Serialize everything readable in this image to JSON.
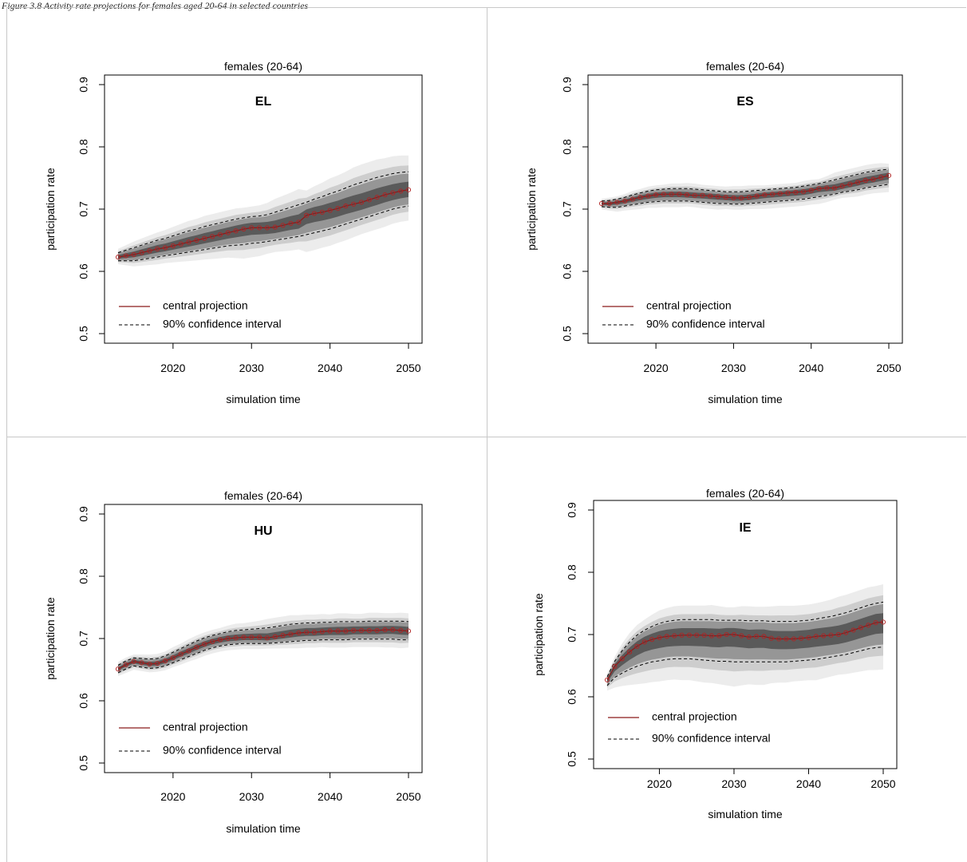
{
  "figure_heading": "Figure 3.8 Activity rate projections for females aged 20-64 in selected countries",
  "legend": {
    "central_label": "central projection",
    "ci_label": "90% confidence interval"
  },
  "colors": {
    "central_line": "#8b1a1a",
    "marker": "#b22222",
    "ci_line": "#000000",
    "band_dark": "#5a5a5a",
    "band_mid": "#969696",
    "band_light": "#cdcdcd",
    "band_faint": "#ececec"
  },
  "chart_data": [
    {
      "type": "line",
      "title": "females (20-64)",
      "country": "EL",
      "xlabel": "simulation time",
      "ylabel": "participation rate",
      "xlim": [
        2013,
        2050
      ],
      "ylim": [
        0.5,
        0.9
      ],
      "xticks": [
        "2020",
        "2030",
        "2040",
        "2050"
      ],
      "yticks": [
        "0.5",
        "0.6",
        "0.7",
        "0.8",
        "0.9"
      ],
      "legend_position": "bottom-left",
      "x": [
        2013,
        2014,
        2015,
        2016,
        2017,
        2018,
        2019,
        2020,
        2021,
        2022,
        2023,
        2024,
        2025,
        2026,
        2027,
        2028,
        2029,
        2030,
        2031,
        2032,
        2033,
        2034,
        2035,
        2036,
        2037,
        2038,
        2039,
        2040,
        2041,
        2042,
        2043,
        2044,
        2045,
        2046,
        2047,
        2048,
        2049,
        2050
      ],
      "series": [
        {
          "name": "central projection",
          "values": [
            0.623,
            0.625,
            0.627,
            0.63,
            0.633,
            0.636,
            0.638,
            0.641,
            0.644,
            0.647,
            0.65,
            0.653,
            0.656,
            0.659,
            0.662,
            0.665,
            0.668,
            0.67,
            0.67,
            0.67,
            0.671,
            0.674,
            0.677,
            0.679,
            0.69,
            0.693,
            0.695,
            0.698,
            0.701,
            0.705,
            0.708,
            0.711,
            0.715,
            0.719,
            0.723,
            0.726,
            0.729,
            0.731
          ]
        },
        {
          "name": "90% confidence interval",
          "values": [
            0.63,
            0.634,
            0.638,
            0.642,
            0.646,
            0.65,
            0.653,
            0.657,
            0.661,
            0.665,
            0.668,
            0.672,
            0.675,
            0.678,
            0.681,
            0.684,
            0.686,
            0.688,
            0.689,
            0.691,
            0.695,
            0.699,
            0.703,
            0.707,
            0.711,
            0.716,
            0.72,
            0.725,
            0.729,
            0.734,
            0.739,
            0.743,
            0.747,
            0.751,
            0.754,
            0.757,
            0.759,
            0.76
          ]
        },
        {
          "name": "90% confidence interval",
          "values": [
            0.617,
            0.617,
            0.617,
            0.619,
            0.621,
            0.623,
            0.625,
            0.627,
            0.629,
            0.631,
            0.633,
            0.635,
            0.637,
            0.639,
            0.641,
            0.642,
            0.643,
            0.645,
            0.646,
            0.648,
            0.65,
            0.652,
            0.654,
            0.656,
            0.659,
            0.662,
            0.665,
            0.668,
            0.672,
            0.676,
            0.68,
            0.684,
            0.688,
            0.692,
            0.696,
            0.7,
            0.703,
            0.705
          ]
        }
      ]
    },
    {
      "type": "line",
      "title": "females (20-64)",
      "country": "ES",
      "xlabel": "simulation time",
      "ylabel": "participation rate",
      "xlim": [
        2013,
        2050
      ],
      "ylim": [
        0.5,
        0.9
      ],
      "xticks": [
        "2020",
        "2030",
        "2040",
        "2050"
      ],
      "yticks": [
        "0.5",
        "0.6",
        "0.7",
        "0.8",
        "0.9"
      ],
      "legend_position": "bottom-left",
      "x": [
        2013,
        2014,
        2015,
        2016,
        2017,
        2018,
        2019,
        2020,
        2021,
        2022,
        2023,
        2024,
        2025,
        2026,
        2027,
        2028,
        2029,
        2030,
        2031,
        2032,
        2033,
        2034,
        2035,
        2036,
        2037,
        2038,
        2039,
        2040,
        2041,
        2042,
        2043,
        2044,
        2045,
        2046,
        2047,
        2048,
        2049,
        2050
      ],
      "series": [
        {
          "name": "central projection",
          "values": [
            0.709,
            0.709,
            0.711,
            0.713,
            0.716,
            0.719,
            0.721,
            0.723,
            0.724,
            0.724,
            0.724,
            0.723,
            0.722,
            0.722,
            0.721,
            0.72,
            0.719,
            0.718,
            0.718,
            0.719,
            0.721,
            0.723,
            0.724,
            0.725,
            0.726,
            0.727,
            0.728,
            0.73,
            0.733,
            0.734,
            0.734,
            0.737,
            0.74,
            0.743,
            0.746,
            0.748,
            0.751,
            0.754
          ]
        },
        {
          "name": "90% confidence interval",
          "values": [
            0.713,
            0.714,
            0.716,
            0.719,
            0.723,
            0.726,
            0.729,
            0.731,
            0.732,
            0.733,
            0.733,
            0.733,
            0.732,
            0.731,
            0.73,
            0.729,
            0.728,
            0.728,
            0.728,
            0.729,
            0.73,
            0.731,
            0.732,
            0.733,
            0.734,
            0.735,
            0.737,
            0.739,
            0.741,
            0.744,
            0.747,
            0.75,
            0.753,
            0.756,
            0.759,
            0.761,
            0.763,
            0.764
          ]
        },
        {
          "name": "90% confidence interval",
          "values": [
            0.704,
            0.703,
            0.703,
            0.705,
            0.707,
            0.709,
            0.711,
            0.712,
            0.713,
            0.713,
            0.713,
            0.713,
            0.712,
            0.711,
            0.71,
            0.709,
            0.709,
            0.708,
            0.708,
            0.709,
            0.71,
            0.711,
            0.712,
            0.713,
            0.714,
            0.715,
            0.716,
            0.718,
            0.72,
            0.722,
            0.724,
            0.727,
            0.729,
            0.731,
            0.734,
            0.736,
            0.738,
            0.74
          ]
        }
      ]
    },
    {
      "type": "line",
      "title": "females (20-64)",
      "country": "HU",
      "xlabel": "simulation time",
      "ylabel": "participation rate",
      "xlim": [
        2013,
        2050
      ],
      "ylim": [
        0.5,
        0.9
      ],
      "xticks": [
        "2020",
        "2030",
        "2040",
        "2050"
      ],
      "yticks": [
        "0.5",
        "0.6",
        "0.7",
        "0.8",
        "0.9"
      ],
      "legend_position": "bottom-left",
      "x": [
        2013,
        2014,
        2015,
        2016,
        2017,
        2018,
        2019,
        2020,
        2021,
        2022,
        2023,
        2024,
        2025,
        2026,
        2027,
        2028,
        2029,
        2030,
        2031,
        2032,
        2033,
        2034,
        2035,
        2036,
        2037,
        2038,
        2039,
        2040,
        2041,
        2042,
        2043,
        2044,
        2045,
        2046,
        2047,
        2048,
        2049,
        2050
      ],
      "series": [
        {
          "name": "central projection",
          "values": [
            0.651,
            0.658,
            0.663,
            0.661,
            0.659,
            0.66,
            0.664,
            0.669,
            0.675,
            0.68,
            0.686,
            0.691,
            0.695,
            0.698,
            0.7,
            0.701,
            0.702,
            0.702,
            0.702,
            0.701,
            0.703,
            0.705,
            0.707,
            0.709,
            0.71,
            0.71,
            0.711,
            0.712,
            0.712,
            0.712,
            0.713,
            0.713,
            0.713,
            0.713,
            0.714,
            0.714,
            0.713,
            0.712
          ]
        },
        {
          "name": "90% confidence interval",
          "values": [
            0.657,
            0.664,
            0.669,
            0.668,
            0.667,
            0.668,
            0.672,
            0.678,
            0.684,
            0.69,
            0.696,
            0.701,
            0.705,
            0.708,
            0.711,
            0.713,
            0.714,
            0.715,
            0.716,
            0.717,
            0.719,
            0.721,
            0.723,
            0.724,
            0.725,
            0.725,
            0.726,
            0.726,
            0.727,
            0.727,
            0.727,
            0.727,
            0.728,
            0.728,
            0.728,
            0.728,
            0.728,
            0.727
          ]
        },
        {
          "name": "90% confidence interval",
          "values": [
            0.645,
            0.651,
            0.656,
            0.654,
            0.652,
            0.653,
            0.656,
            0.661,
            0.666,
            0.671,
            0.676,
            0.681,
            0.685,
            0.688,
            0.69,
            0.691,
            0.692,
            0.692,
            0.692,
            0.692,
            0.693,
            0.694,
            0.695,
            0.696,
            0.697,
            0.697,
            0.698,
            0.698,
            0.698,
            0.698,
            0.699,
            0.699,
            0.699,
            0.699,
            0.699,
            0.699,
            0.698,
            0.698
          ]
        }
      ]
    },
    {
      "type": "line",
      "title": "females (20-64)",
      "country": "IE",
      "xlabel": "simulation time",
      "ylabel": "participation rate",
      "xlim": [
        2013,
        2050
      ],
      "ylim": [
        0.5,
        0.9
      ],
      "xticks": [
        "2020",
        "2030",
        "2040",
        "2050"
      ],
      "yticks": [
        "0.5",
        "0.6",
        "0.7",
        "0.8",
        "0.9"
      ],
      "legend_position": "bottom-left",
      "x": [
        2013,
        2014,
        2015,
        2016,
        2017,
        2018,
        2019,
        2020,
        2021,
        2022,
        2023,
        2024,
        2025,
        2026,
        2027,
        2028,
        2029,
        2030,
        2031,
        2032,
        2033,
        2034,
        2035,
        2036,
        2037,
        2038,
        2039,
        2040,
        2041,
        2042,
        2043,
        2044,
        2045,
        2046,
        2047,
        2048,
        2049,
        2050
      ],
      "series": [
        {
          "name": "central projection",
          "values": [
            0.627,
            0.649,
            0.661,
            0.672,
            0.681,
            0.688,
            0.692,
            0.695,
            0.697,
            0.698,
            0.699,
            0.699,
            0.699,
            0.699,
            0.698,
            0.698,
            0.7,
            0.7,
            0.698,
            0.696,
            0.697,
            0.697,
            0.694,
            0.693,
            0.693,
            0.693,
            0.694,
            0.695,
            0.697,
            0.698,
            0.699,
            0.7,
            0.703,
            0.707,
            0.711,
            0.715,
            0.719,
            0.72
          ]
        },
        {
          "name": "90% confidence interval",
          "values": [
            0.632,
            0.657,
            0.674,
            0.688,
            0.699,
            0.707,
            0.713,
            0.718,
            0.721,
            0.723,
            0.724,
            0.724,
            0.724,
            0.724,
            0.724,
            0.723,
            0.723,
            0.723,
            0.723,
            0.722,
            0.722,
            0.722,
            0.721,
            0.721,
            0.721,
            0.721,
            0.722,
            0.723,
            0.725,
            0.727,
            0.729,
            0.732,
            0.735,
            0.739,
            0.743,
            0.747,
            0.75,
            0.752
          ]
        },
        {
          "name": "90% confidence interval",
          "values": [
            0.618,
            0.631,
            0.638,
            0.644,
            0.649,
            0.653,
            0.656,
            0.658,
            0.66,
            0.661,
            0.661,
            0.661,
            0.66,
            0.659,
            0.658,
            0.657,
            0.657,
            0.656,
            0.656,
            0.656,
            0.656,
            0.656,
            0.656,
            0.656,
            0.656,
            0.657,
            0.658,
            0.659,
            0.66,
            0.662,
            0.664,
            0.666,
            0.668,
            0.671,
            0.674,
            0.677,
            0.679,
            0.68
          ]
        }
      ]
    }
  ]
}
